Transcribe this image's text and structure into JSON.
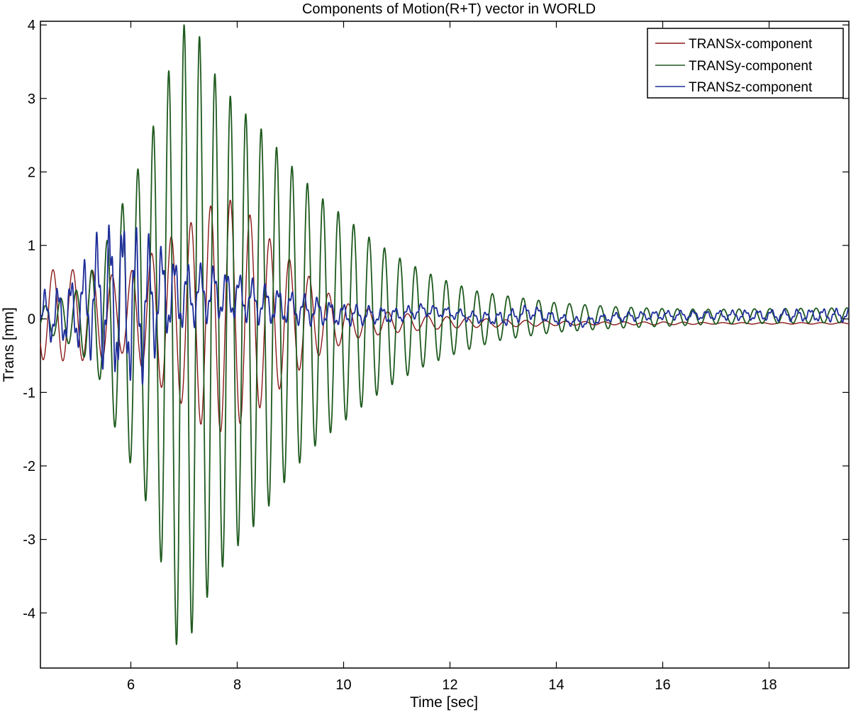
{
  "chart_data": {
    "type": "line",
    "title": "Components of Motion(R+T) vector in WORLD",
    "xlabel": "Time [sec]",
    "ylabel": "Trans [mm]",
    "xlim": [
      4.3,
      19.5
    ],
    "ylim": [
      -4.75,
      4.05
    ],
    "xticks": [
      6,
      8,
      10,
      12,
      14,
      16,
      18
    ],
    "xtick_labels": [
      "6",
      "8",
      "10",
      "12",
      "14",
      "16",
      "18"
    ],
    "yticks": [
      4,
      3,
      2,
      1,
      0,
      -1,
      -2,
      -3,
      -4
    ],
    "ytick_labels": [
      "4",
      "3",
      "2",
      "1",
      "0",
      "-1",
      "-2",
      "-3",
      "-4"
    ],
    "grid": false,
    "legend_position": "top-right",
    "series": [
      {
        "name": "TRANSx-component",
        "color": "#8b1a1a",
        "x": [
          4.3,
          4.5,
          5.0,
          5.5,
          5.8,
          6.2,
          6.6,
          7.0,
          7.4,
          7.8,
          8.2,
          8.6,
          9.0,
          9.4,
          9.8,
          10.2,
          10.8,
          11.5,
          12.2,
          13.0,
          14.0,
          15.0,
          16.0,
          17.0,
          18.0,
          19.0,
          19.5
        ],
        "amplitude": [
          0.6,
          0.62,
          0.62,
          0.6,
          0.5,
          0.7,
          1.0,
          1.2,
          1.5,
          1.6,
          1.4,
          1.1,
          0.8,
          0.55,
          0.35,
          0.22,
          0.15,
          0.1,
          0.07,
          0.05,
          0.03,
          0.02,
          0.02,
          0.01,
          0.01,
          0.01,
          0.01
        ],
        "offset": [
          0.05,
          0.05,
          0.05,
          0.05,
          0.05,
          0.05,
          0.05,
          0.02,
          0.0,
          0.05,
          0.05,
          0.0,
          0.0,
          0.0,
          -0.05,
          -0.05,
          -0.05,
          -0.05,
          -0.05,
          -0.06,
          -0.06,
          -0.06,
          -0.06,
          -0.06,
          -0.06,
          -0.06,
          -0.06
        ]
      },
      {
        "name": "TRANSy-component",
        "color": "#1e5a1e",
        "x": [
          4.3,
          4.6,
          5.0,
          5.4,
          5.8,
          6.2,
          6.6,
          6.9,
          7.2,
          7.6,
          8.0,
          8.5,
          9.0,
          9.5,
          10.0,
          10.5,
          11.0,
          11.5,
          12.0,
          12.5,
          13.0,
          14.0,
          15.0,
          16.0,
          17.0,
          18.0,
          19.5
        ],
        "amplitude": [
          0.15,
          0.25,
          0.4,
          0.8,
          1.6,
          2.2,
          3.2,
          4.3,
          4.1,
          3.4,
          3.0,
          2.6,
          2.1,
          1.7,
          1.4,
          1.1,
          0.85,
          0.65,
          0.5,
          0.38,
          0.3,
          0.2,
          0.15,
          0.12,
          0.1,
          0.1,
          0.1
        ],
        "offset": [
          0,
          0,
          0,
          0,
          -0.1,
          -0.05,
          -0.2,
          -0.3,
          -0.1,
          -0.1,
          -0.1,
          -0.05,
          0,
          0,
          0,
          0,
          0,
          0,
          0,
          0,
          0.02,
          0.02,
          0.02,
          0.02,
          0.03,
          0.04,
          0.05
        ]
      },
      {
        "name": "TRANSz-component",
        "color": "#1f2f9a",
        "x": [
          4.3,
          4.6,
          5.0,
          5.4,
          5.8,
          6.2,
          6.6,
          7.0,
          7.5,
          8.0,
          8.5,
          9.0,
          9.5,
          10.0,
          10.5,
          11.0,
          11.5,
          12.0,
          12.5,
          13.0,
          13.5,
          14.0,
          14.5,
          15.0,
          16.0,
          17.0,
          18.0,
          19.0,
          19.5
        ],
        "amplitude": [
          0.25,
          0.3,
          0.4,
          0.7,
          0.95,
          0.8,
          0.5,
          0.35,
          0.3,
          0.25,
          0.22,
          0.18,
          0.15,
          0.12,
          0.1,
          0.08,
          0.07,
          0.06,
          0.06,
          0.08,
          0.08,
          0.06,
          0.05,
          0.05,
          0.05,
          0.05,
          0.06,
          0.07,
          0.07
        ],
        "offset": [
          0.05,
          0.05,
          0.1,
          0.3,
          0.25,
          0.15,
          0.35,
          0.3,
          0.35,
          0.3,
          0.2,
          0.15,
          0.1,
          0.05,
          0.05,
          0.05,
          0.12,
          0.08,
          0.02,
          0.0,
          0.1,
          0.0,
          -0.05,
          0.02,
          0.05,
          0.05,
          0.05,
          0.05,
          0.05
        ]
      }
    ]
  }
}
